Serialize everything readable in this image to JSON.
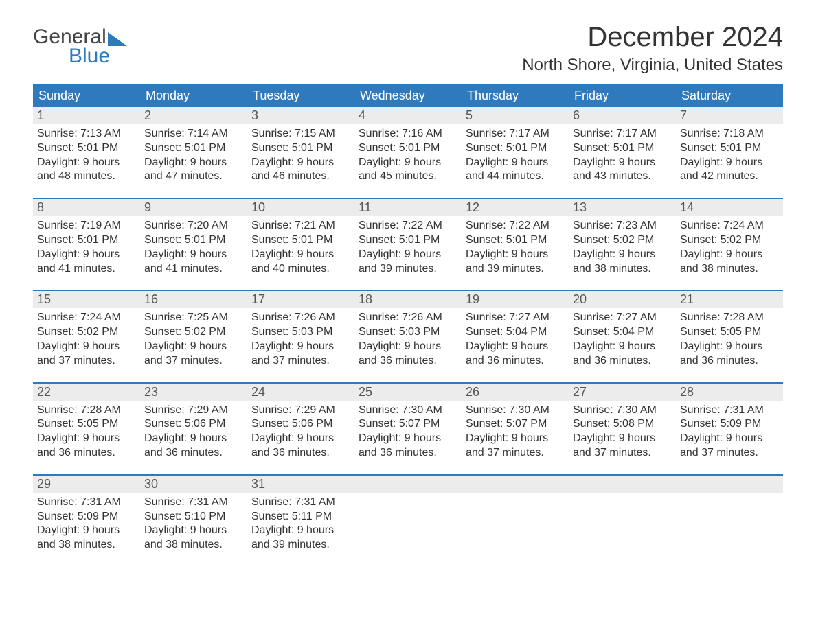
{
  "logo": {
    "word1": "General",
    "word2": "Blue"
  },
  "title": "December 2024",
  "location": "North Shore, Virginia, United States",
  "colors": {
    "accent": "#2f79bd",
    "header_text": "#ffffff",
    "daynum_bg": "#ececec",
    "text": "#333333",
    "week_border": "#2f79bd",
    "background": "#ffffff"
  },
  "typography": {
    "title_fontsize": 40,
    "location_fontsize": 24,
    "dow_fontsize": 18,
    "daynum_fontsize": 18,
    "body_fontsize": 16
  },
  "days_of_week": [
    "Sunday",
    "Monday",
    "Tuesday",
    "Wednesday",
    "Thursday",
    "Friday",
    "Saturday"
  ],
  "weeks": [
    [
      {
        "n": "1",
        "sunrise": "Sunrise: 7:13 AM",
        "sunset": "Sunset: 5:01 PM",
        "dl1": "Daylight: 9 hours",
        "dl2": "and 48 minutes."
      },
      {
        "n": "2",
        "sunrise": "Sunrise: 7:14 AM",
        "sunset": "Sunset: 5:01 PM",
        "dl1": "Daylight: 9 hours",
        "dl2": "and 47 minutes."
      },
      {
        "n": "3",
        "sunrise": "Sunrise: 7:15 AM",
        "sunset": "Sunset: 5:01 PM",
        "dl1": "Daylight: 9 hours",
        "dl2": "and 46 minutes."
      },
      {
        "n": "4",
        "sunrise": "Sunrise: 7:16 AM",
        "sunset": "Sunset: 5:01 PM",
        "dl1": "Daylight: 9 hours",
        "dl2": "and 45 minutes."
      },
      {
        "n": "5",
        "sunrise": "Sunrise: 7:17 AM",
        "sunset": "Sunset: 5:01 PM",
        "dl1": "Daylight: 9 hours",
        "dl2": "and 44 minutes."
      },
      {
        "n": "6",
        "sunrise": "Sunrise: 7:17 AM",
        "sunset": "Sunset: 5:01 PM",
        "dl1": "Daylight: 9 hours",
        "dl2": "and 43 minutes."
      },
      {
        "n": "7",
        "sunrise": "Sunrise: 7:18 AM",
        "sunset": "Sunset: 5:01 PM",
        "dl1": "Daylight: 9 hours",
        "dl2": "and 42 minutes."
      }
    ],
    [
      {
        "n": "8",
        "sunrise": "Sunrise: 7:19 AM",
        "sunset": "Sunset: 5:01 PM",
        "dl1": "Daylight: 9 hours",
        "dl2": "and 41 minutes."
      },
      {
        "n": "9",
        "sunrise": "Sunrise: 7:20 AM",
        "sunset": "Sunset: 5:01 PM",
        "dl1": "Daylight: 9 hours",
        "dl2": "and 41 minutes."
      },
      {
        "n": "10",
        "sunrise": "Sunrise: 7:21 AM",
        "sunset": "Sunset: 5:01 PM",
        "dl1": "Daylight: 9 hours",
        "dl2": "and 40 minutes."
      },
      {
        "n": "11",
        "sunrise": "Sunrise: 7:22 AM",
        "sunset": "Sunset: 5:01 PM",
        "dl1": "Daylight: 9 hours",
        "dl2": "and 39 minutes."
      },
      {
        "n": "12",
        "sunrise": "Sunrise: 7:22 AM",
        "sunset": "Sunset: 5:01 PM",
        "dl1": "Daylight: 9 hours",
        "dl2": "and 39 minutes."
      },
      {
        "n": "13",
        "sunrise": "Sunrise: 7:23 AM",
        "sunset": "Sunset: 5:02 PM",
        "dl1": "Daylight: 9 hours",
        "dl2": "and 38 minutes."
      },
      {
        "n": "14",
        "sunrise": "Sunrise: 7:24 AM",
        "sunset": "Sunset: 5:02 PM",
        "dl1": "Daylight: 9 hours",
        "dl2": "and 38 minutes."
      }
    ],
    [
      {
        "n": "15",
        "sunrise": "Sunrise: 7:24 AM",
        "sunset": "Sunset: 5:02 PM",
        "dl1": "Daylight: 9 hours",
        "dl2": "and 37 minutes."
      },
      {
        "n": "16",
        "sunrise": "Sunrise: 7:25 AM",
        "sunset": "Sunset: 5:02 PM",
        "dl1": "Daylight: 9 hours",
        "dl2": "and 37 minutes."
      },
      {
        "n": "17",
        "sunrise": "Sunrise: 7:26 AM",
        "sunset": "Sunset: 5:03 PM",
        "dl1": "Daylight: 9 hours",
        "dl2": "and 37 minutes."
      },
      {
        "n": "18",
        "sunrise": "Sunrise: 7:26 AM",
        "sunset": "Sunset: 5:03 PM",
        "dl1": "Daylight: 9 hours",
        "dl2": "and 36 minutes."
      },
      {
        "n": "19",
        "sunrise": "Sunrise: 7:27 AM",
        "sunset": "Sunset: 5:04 PM",
        "dl1": "Daylight: 9 hours",
        "dl2": "and 36 minutes."
      },
      {
        "n": "20",
        "sunrise": "Sunrise: 7:27 AM",
        "sunset": "Sunset: 5:04 PM",
        "dl1": "Daylight: 9 hours",
        "dl2": "and 36 minutes."
      },
      {
        "n": "21",
        "sunrise": "Sunrise: 7:28 AM",
        "sunset": "Sunset: 5:05 PM",
        "dl1": "Daylight: 9 hours",
        "dl2": "and 36 minutes."
      }
    ],
    [
      {
        "n": "22",
        "sunrise": "Sunrise: 7:28 AM",
        "sunset": "Sunset: 5:05 PM",
        "dl1": "Daylight: 9 hours",
        "dl2": "and 36 minutes."
      },
      {
        "n": "23",
        "sunrise": "Sunrise: 7:29 AM",
        "sunset": "Sunset: 5:06 PM",
        "dl1": "Daylight: 9 hours",
        "dl2": "and 36 minutes."
      },
      {
        "n": "24",
        "sunrise": "Sunrise: 7:29 AM",
        "sunset": "Sunset: 5:06 PM",
        "dl1": "Daylight: 9 hours",
        "dl2": "and 36 minutes."
      },
      {
        "n": "25",
        "sunrise": "Sunrise: 7:30 AM",
        "sunset": "Sunset: 5:07 PM",
        "dl1": "Daylight: 9 hours",
        "dl2": "and 36 minutes."
      },
      {
        "n": "26",
        "sunrise": "Sunrise: 7:30 AM",
        "sunset": "Sunset: 5:07 PM",
        "dl1": "Daylight: 9 hours",
        "dl2": "and 37 minutes."
      },
      {
        "n": "27",
        "sunrise": "Sunrise: 7:30 AM",
        "sunset": "Sunset: 5:08 PM",
        "dl1": "Daylight: 9 hours",
        "dl2": "and 37 minutes."
      },
      {
        "n": "28",
        "sunrise": "Sunrise: 7:31 AM",
        "sunset": "Sunset: 5:09 PM",
        "dl1": "Daylight: 9 hours",
        "dl2": "and 37 minutes."
      }
    ],
    [
      {
        "n": "29",
        "sunrise": "Sunrise: 7:31 AM",
        "sunset": "Sunset: 5:09 PM",
        "dl1": "Daylight: 9 hours",
        "dl2": "and 38 minutes."
      },
      {
        "n": "30",
        "sunrise": "Sunrise: 7:31 AM",
        "sunset": "Sunset: 5:10 PM",
        "dl1": "Daylight: 9 hours",
        "dl2": "and 38 minutes."
      },
      {
        "n": "31",
        "sunrise": "Sunrise: 7:31 AM",
        "sunset": "Sunset: 5:11 PM",
        "dl1": "Daylight: 9 hours",
        "dl2": "and 39 minutes."
      },
      {
        "empty": true
      },
      {
        "empty": true
      },
      {
        "empty": true
      },
      {
        "empty": true
      }
    ]
  ]
}
